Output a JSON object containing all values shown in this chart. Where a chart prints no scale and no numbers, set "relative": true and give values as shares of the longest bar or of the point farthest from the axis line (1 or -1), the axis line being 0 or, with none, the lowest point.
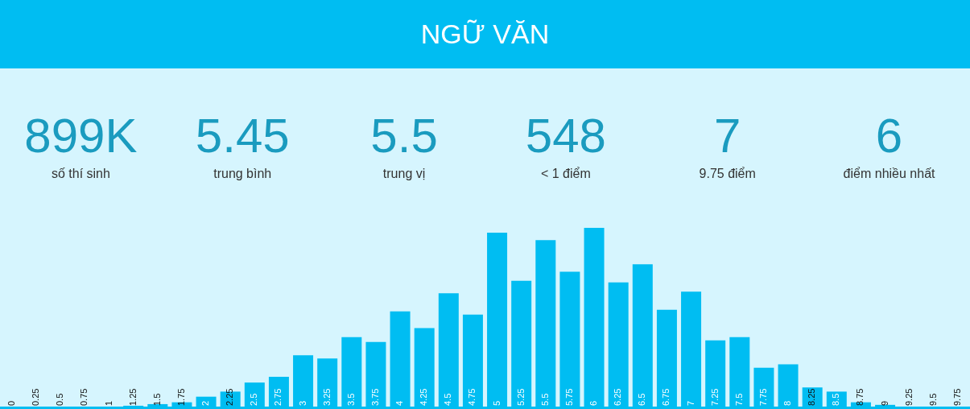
{
  "chart_data": {
    "type": "bar",
    "title": "NGỮ VĂN",
    "annotations": [
      "899K",
      "số thí sinh",
      "5.45",
      "trung bình",
      "5.5",
      "trung vị",
      "548",
      "< 1 điểm",
      "7",
      "9.75 điểm",
      "6",
      "điểm nhiều nhất"
    ],
    "categories": [
      "0",
      "0.25",
      "0.5",
      "0.75",
      "1",
      "1.25",
      "1.5",
      "1.75",
      "2",
      "2.25",
      "2.5",
      "2.75",
      "3",
      "3.25",
      "3.5",
      "3.75",
      "4",
      "4.25",
      "4.5",
      "4.75",
      "5",
      "5.25",
      "5.5",
      "5.75",
      "6",
      "6.25",
      "6.5",
      "6.75",
      "7",
      "7.25",
      "7.5",
      "7.75",
      "8",
      "8.25",
      "8.5",
      "8.75",
      "9",
      "9.25",
      "9.5",
      "9.75"
    ],
    "values": [
      0,
      0,
      0,
      0,
      0,
      0.018,
      0.027,
      0.037,
      0.068,
      0.096,
      0.146,
      0.178,
      0.297,
      0.279,
      0.397,
      0.37,
      0.539,
      0.447,
      0.639,
      0.521,
      0.973,
      0.708,
      0.932,
      0.758,
      1,
      0.699,
      0.799,
      0.548,
      0.648,
      0.379,
      0.397,
      0.228,
      0.247,
      0.119,
      0.096,
      0.037,
      0.023,
      0,
      0,
      0
    ],
    "color": "#00bdf2",
    "relative": true,
    "grid": false,
    "legend": false
  }
}
